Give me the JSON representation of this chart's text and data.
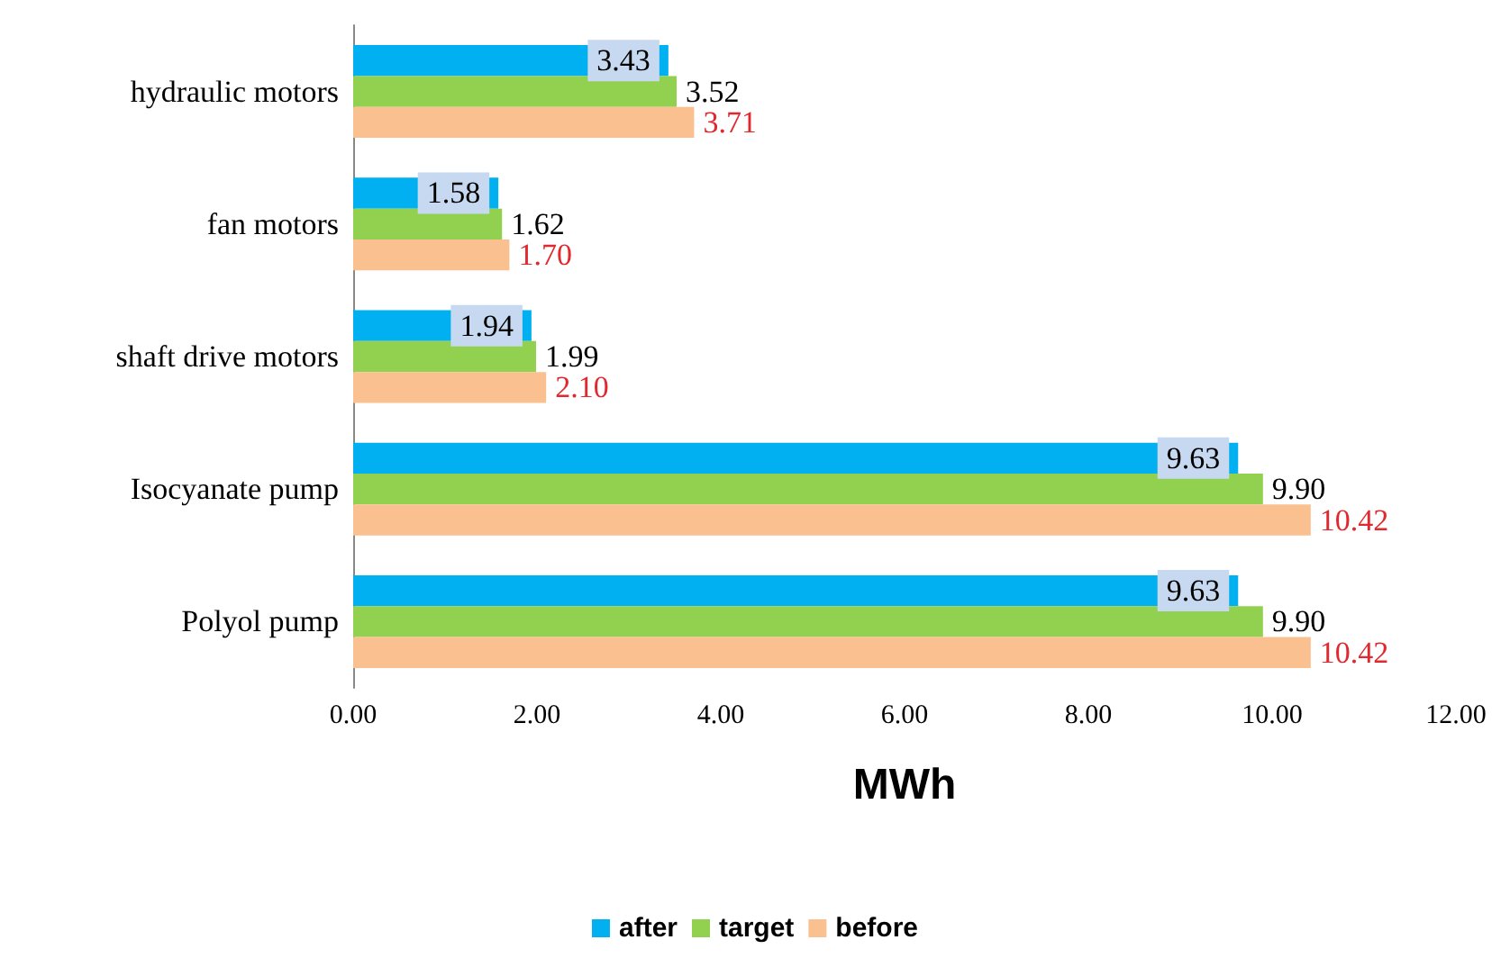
{
  "chart_data": {
    "type": "bar",
    "orientation": "horizontal",
    "xlabel": "MWh",
    "categories": [
      "hydraulic motors",
      "fan motors",
      "shaft drive motors",
      "Isocyanate pump",
      "Polyol pump"
    ],
    "series": [
      {
        "name": "after",
        "color": "#00b0f0",
        "values": [
          3.43,
          1.58,
          1.94,
          9.63,
          9.63
        ],
        "value_labels": [
          "3.43",
          "1.58",
          "1.94",
          "9.63",
          "9.63"
        ]
      },
      {
        "name": "target",
        "color": "#92d050",
        "values": [
          3.52,
          1.62,
          1.99,
          9.9,
          9.9
        ],
        "value_labels": [
          "3.52",
          "1.62",
          "1.99",
          "9.90",
          "9.90"
        ]
      },
      {
        "name": "before",
        "color": "#fac090",
        "values": [
          3.71,
          1.7,
          2.1,
          10.42,
          10.42
        ],
        "value_labels": [
          "3.71",
          "1.70",
          "2.10",
          "10.42",
          "10.42"
        ]
      }
    ],
    "xlim": [
      0,
      12
    ],
    "xticks": [
      {
        "value": 0,
        "label": "0.00"
      },
      {
        "value": 2,
        "label": "2.00"
      },
      {
        "value": 4,
        "label": "4.00"
      },
      {
        "value": 6,
        "label": "6.00"
      },
      {
        "value": 8,
        "label": "8.00"
      },
      {
        "value": 10,
        "label": "10.00"
      },
      {
        "value": 12,
        "label": "12.00"
      }
    ],
    "grid": false,
    "legend": "bottom"
  }
}
